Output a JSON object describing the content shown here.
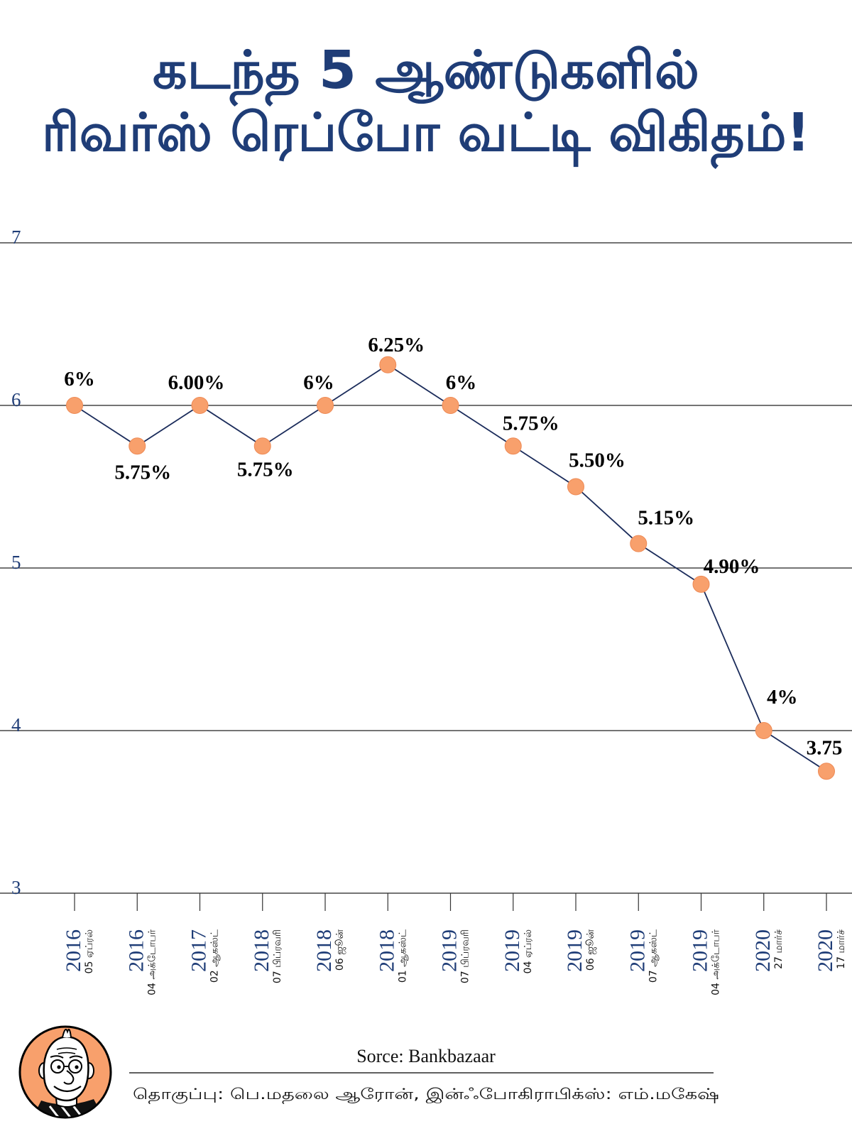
{
  "colors": {
    "title": "#1f3d77",
    "axis_text": "#1f3d77",
    "series_line": "#1b2c5b",
    "marker_fill": "#f8a06c",
    "marker_stroke": "#ee8a55",
    "logo_fill": "#f8a06c"
  },
  "chart_data": {
    "type": "line",
    "title": [
      "கடந்த 5 ஆண்டுகளில்",
      "ரிவர்ஸ் ரெப்போ வட்டி விகிதம்!"
    ],
    "xlabel": "",
    "ylabel": "",
    "categories": [
      {
        "year": "2016",
        "date": "05 ஏப்ரல்"
      },
      {
        "year": "2016",
        "date": "04 அக்டோபர்"
      },
      {
        "year": "2017",
        "date": "02 ஆகஸ்ட்"
      },
      {
        "year": "2018",
        "date": "07 பிப்ரவரி"
      },
      {
        "year": "2018",
        "date": "06 ஜூன்"
      },
      {
        "year": "2018",
        "date": "01 ஆகஸ்ட்"
      },
      {
        "year": "2019",
        "date": "07 பிப்ரவரி"
      },
      {
        "year": "2019",
        "date": "04 ஏப்ரல்"
      },
      {
        "year": "2019",
        "date": "06 ஜூன்"
      },
      {
        "year": "2019",
        "date": "07 ஆகஸ்ட்"
      },
      {
        "year": "2019",
        "date": "04 அக்டோபர்"
      },
      {
        "year": "2020",
        "date": "27 மார்ச்"
      },
      {
        "year": "2020",
        "date": "17 மார்ச்"
      }
    ],
    "values": [
      6,
      5.75,
      6,
      5.75,
      6,
      6.25,
      6,
      5.75,
      5.5,
      5.15,
      4.9,
      4,
      3.75
    ],
    "data_labels": [
      "6%",
      "5.75%",
      "6.00%",
      "5.75%",
      "6%",
      "6.25%",
      "6%",
      "5.75%",
      "5.50%",
      "5.15%",
      "4.90%",
      "4%",
      "3.75"
    ],
    "yticks": [
      7,
      6,
      5,
      4,
      3
    ],
    "ylim": [
      3,
      7
    ],
    "grid": true,
    "legend": "none"
  },
  "footer": {
    "source": "Sorce: Bankbazaar",
    "credits": "தொகுப்பு: பெ.மதலை ஆரோன், இன்ஃபோகிராபிக்ஸ்: எம்.மகேஷ்",
    "logo_icon": "caricature-face-icon"
  }
}
